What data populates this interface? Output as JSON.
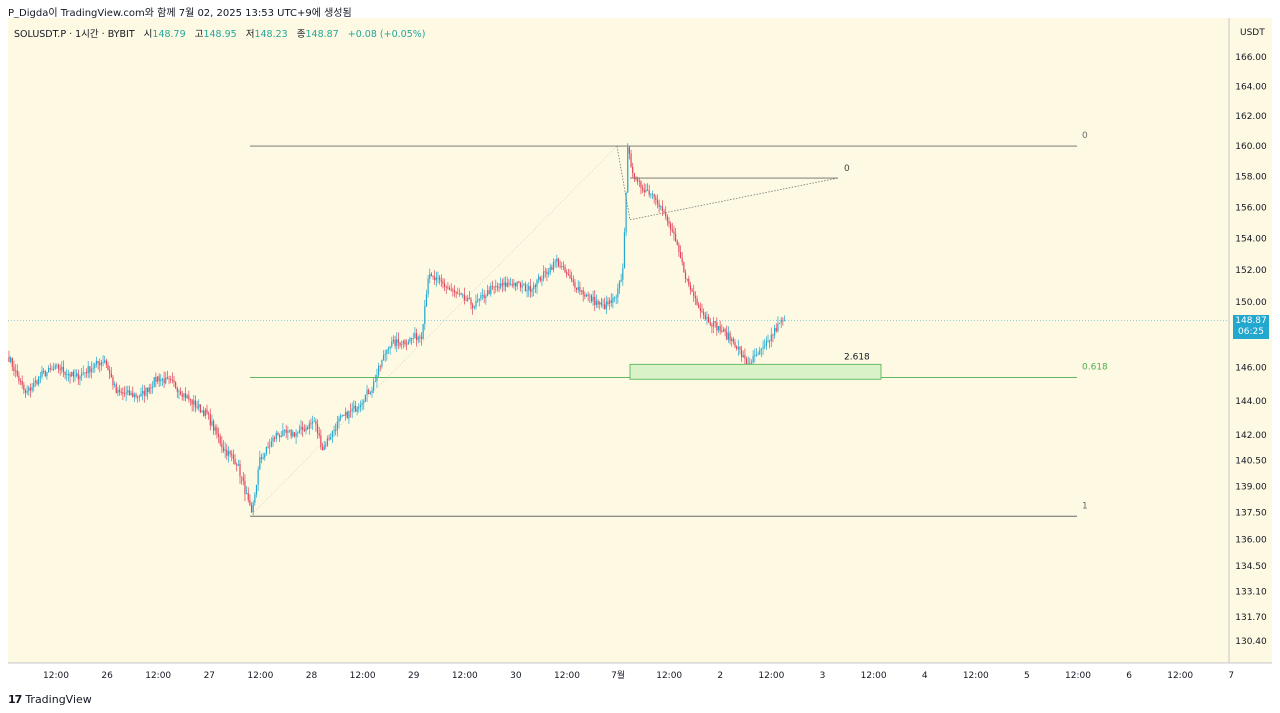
{
  "header": {
    "attribution": "P_Digda이 TradingView.com와 함께 7월 02, 2025 13:53 UTC+9에 생성됨"
  },
  "legend": {
    "symbol": "SOLUSDT.P · 1시간 · BYBIT",
    "open_label": "시",
    "open": "148.79",
    "high_label": "고",
    "high": "148.95",
    "low_label": "저",
    "low": "148.23",
    "close_label": "종",
    "close": "148.87",
    "change": "+0.08 (+0.05%)"
  },
  "price_axis": {
    "currency": "USDT",
    "last_price": "148.87",
    "countdown": "06:25"
  },
  "footer": {
    "brand": "TradingView",
    "logo": "17"
  },
  "colors": {
    "background": "#fdf9e3",
    "up": "#22a7cf",
    "down": "#e0445a",
    "fib_line": "#6b6b6b",
    "fib_618": "#4caf50",
    "zone_fill": "#d9f2c7",
    "price_tag": "#22a7cf"
  },
  "chart_data": {
    "type": "candlestick",
    "symbol": "SOLUSDT.P",
    "interval": "1시간",
    "exchange": "BYBIT",
    "y_scale": "log",
    "ylim": [
      129.5,
      168
    ],
    "y_ticks": [
      "166.00",
      "164.00",
      "162.00",
      "160.00",
      "158.00",
      "156.00",
      "154.00",
      "152.00",
      "150.00",
      "148.00",
      "146.00",
      "144.00",
      "142.00",
      "140.50",
      "139.00",
      "137.50",
      "136.00",
      "134.50",
      "133.10",
      "131.70",
      "130.40"
    ],
    "x_ticks": [
      "12:00",
      "26",
      "12:00",
      "27",
      "12:00",
      "28",
      "12:00",
      "29",
      "12:00",
      "30",
      "12:00",
      "7월",
      "12:00",
      "2",
      "12:00",
      "3",
      "12:00",
      "4",
      "12:00",
      "5",
      "12:00",
      "6",
      "12:00",
      "7"
    ],
    "series_anchor_points": [
      [
        0,
        146.6
      ],
      [
        10,
        144.4
      ],
      [
        20,
        145.6
      ],
      [
        30,
        146.0
      ],
      [
        40,
        145.4
      ],
      [
        50,
        146.0
      ],
      [
        58,
        146.5
      ],
      [
        65,
        144.5
      ],
      [
        80,
        144.3
      ],
      [
        90,
        145.4
      ],
      [
        100,
        145.0
      ],
      [
        110,
        144.0
      ],
      [
        120,
        143.2
      ],
      [
        130,
        141.2
      ],
      [
        138,
        140.4
      ],
      [
        143,
        138.8
      ],
      [
        147,
        137.3
      ],
      [
        152,
        140.5
      ],
      [
        162,
        142.0
      ],
      [
        175,
        142.1
      ],
      [
        185,
        142.8
      ],
      [
        190,
        141.2
      ],
      [
        200,
        142.8
      ],
      [
        210,
        143.6
      ],
      [
        220,
        144.8
      ],
      [
        230,
        147.4
      ],
      [
        240,
        147.6
      ],
      [
        250,
        148.0
      ],
      [
        254,
        151.6
      ],
      [
        262,
        151.2
      ],
      [
        272,
        150.4
      ],
      [
        282,
        149.8
      ],
      [
        292,
        150.8
      ],
      [
        305,
        151.2
      ],
      [
        315,
        150.8
      ],
      [
        325,
        151.8
      ],
      [
        332,
        152.6
      ],
      [
        340,
        151.4
      ],
      [
        350,
        150.4
      ],
      [
        360,
        149.7
      ],
      [
        368,
        150.2
      ],
      [
        372,
        152.0
      ],
      [
        375,
        159.7
      ],
      [
        380,
        157.6
      ],
      [
        392,
        156.7
      ],
      [
        402,
        154.4
      ],
      [
        412,
        151.0
      ],
      [
        422,
        149.1
      ],
      [
        430,
        148.4
      ],
      [
        440,
        147.5
      ],
      [
        447,
        146.2
      ],
      [
        452,
        146.6
      ],
      [
        458,
        147.2
      ],
      [
        465,
        148.4
      ],
      [
        470,
        149.0
      ]
    ],
    "fib_retracement": {
      "levels": [
        {
          "label": "0",
          "price": 160.0
        },
        {
          "label": "0.618",
          "price": 145.4
        },
        {
          "label": "1",
          "price": 137.3
        }
      ]
    },
    "fib_extension": {
      "label_top": "0",
      "top_price": 157.9,
      "label_target": "2.618",
      "zone": [
        145.3,
        146.2
      ]
    },
    "last_price": 148.87
  }
}
